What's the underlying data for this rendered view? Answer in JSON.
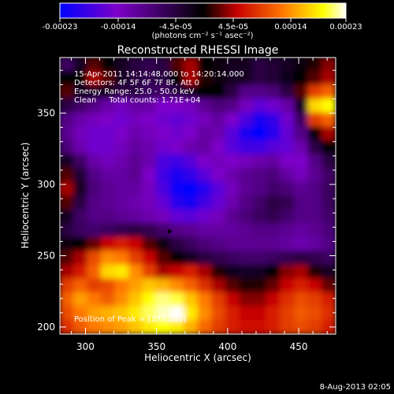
{
  "colorbar": {
    "ticks": [
      "-0.00023",
      "-0.00014",
      "-4.5e-05",
      "4.5e-05",
      "0.00014",
      "0.00023"
    ],
    "unit_line": "(photons cm⁻² s⁻¹ asec⁻²)"
  },
  "chart_data": {
    "type": "heatmap",
    "title": "Reconstructed RHESSI Image",
    "xlabel": "Heliocentric X (arcsec)",
    "ylabel": "Heliocentric Y (arcsec)",
    "xlim": [
      282,
      476
    ],
    "ylim": [
      195,
      389
    ],
    "x_ticks": [
      "300",
      "350",
      "400",
      "450"
    ],
    "y_ticks": [
      "200",
      "250",
      "300",
      "350"
    ],
    "annotations": [
      "15-Apr-2011 14:14:48.000 to 14:20:14.000",
      "Detectors: 4F 5F 6F 7F 8F, Att 0",
      "Energy Range: 25.0 - 50.0 keV",
      "Clean     Total counts: 1.71E+04"
    ],
    "peak_label": "Position of Peak = [377,210]",
    "marker": [
      359,
      267
    ],
    "colorscale": [
      "#0000ff",
      "#7d00c9",
      "#000000",
      "#c80000",
      "#ff7800",
      "#ffff00",
      "#ffffff"
    ],
    "grid": false,
    "levels": [
      [
        0.35,
        0.45,
        0.55,
        0.5,
        0.45,
        0.4,
        0.38,
        0.4,
        0.55,
        0.6,
        0.5,
        0.48,
        0.45,
        0.45,
        0.4,
        0.42,
        0.44,
        0.48,
        0.52,
        0.58
      ],
      [
        0.5,
        0.5,
        0.6,
        0.55,
        0.45,
        0.4,
        0.38,
        0.4,
        0.5,
        0.6,
        0.52,
        0.48,
        0.45,
        0.45,
        0.4,
        0.42,
        0.46,
        0.5,
        0.55,
        0.6
      ],
      [
        0.55,
        0.45,
        0.45,
        0.45,
        0.4,
        0.4,
        0.36,
        0.35,
        0.4,
        0.45,
        0.5,
        0.5,
        0.4,
        0.3,
        0.3,
        0.32,
        0.4,
        0.55,
        0.7,
        0.75
      ],
      [
        0.4,
        0.35,
        0.3,
        0.25,
        0.22,
        0.26,
        0.25,
        0.2,
        0.2,
        0.22,
        0.28,
        0.32,
        0.3,
        0.22,
        0.15,
        0.18,
        0.25,
        0.45,
        0.88,
        0.92
      ],
      [
        0.3,
        0.25,
        0.22,
        0.2,
        0.18,
        0.22,
        0.2,
        0.18,
        0.16,
        0.18,
        0.22,
        0.26,
        0.2,
        0.12,
        0.05,
        0.08,
        0.18,
        0.35,
        0.7,
        0.75
      ],
      [
        0.28,
        0.22,
        0.18,
        0.18,
        0.2,
        0.24,
        0.22,
        0.2,
        0.18,
        0.2,
        0.26,
        0.24,
        0.14,
        0.05,
        0.0,
        0.06,
        0.16,
        0.3,
        0.5,
        0.6
      ],
      [
        0.32,
        0.24,
        0.18,
        0.18,
        0.22,
        0.26,
        0.24,
        0.18,
        0.2,
        0.24,
        0.26,
        0.2,
        0.14,
        0.1,
        0.1,
        0.14,
        0.16,
        0.24,
        0.4,
        0.5
      ],
      [
        0.45,
        0.35,
        0.25,
        0.22,
        0.24,
        0.28,
        0.24,
        0.12,
        0.1,
        0.14,
        0.2,
        0.22,
        0.2,
        0.22,
        0.24,
        0.26,
        0.2,
        0.2,
        0.3,
        0.4
      ],
      [
        0.55,
        0.42,
        0.3,
        0.26,
        0.26,
        0.28,
        0.2,
        0.1,
        0.05,
        0.08,
        0.14,
        0.2,
        0.24,
        0.28,
        0.3,
        0.32,
        0.26,
        0.22,
        0.28,
        0.35
      ],
      [
        0.6,
        0.45,
        0.32,
        0.28,
        0.26,
        0.26,
        0.22,
        0.12,
        0.02,
        0.0,
        0.06,
        0.14,
        0.22,
        0.28,
        0.3,
        0.34,
        0.32,
        0.28,
        0.3,
        0.36
      ],
      [
        0.55,
        0.4,
        0.3,
        0.28,
        0.26,
        0.24,
        0.22,
        0.16,
        0.06,
        0.04,
        0.1,
        0.16,
        0.24,
        0.3,
        0.34,
        0.4,
        0.38,
        0.3,
        0.3,
        0.36
      ],
      [
        0.45,
        0.35,
        0.3,
        0.3,
        0.28,
        0.26,
        0.24,
        0.22,
        0.16,
        0.14,
        0.18,
        0.22,
        0.28,
        0.32,
        0.36,
        0.38,
        0.34,
        0.3,
        0.3,
        0.34
      ],
      [
        0.4,
        0.36,
        0.34,
        0.36,
        0.38,
        0.4,
        0.38,
        0.34,
        0.3,
        0.28,
        0.26,
        0.26,
        0.26,
        0.28,
        0.3,
        0.3,
        0.28,
        0.26,
        0.28,
        0.32
      ],
      [
        0.48,
        0.5,
        0.56,
        0.62,
        0.66,
        0.62,
        0.55,
        0.48,
        0.4,
        0.36,
        0.32,
        0.3,
        0.28,
        0.28,
        0.28,
        0.28,
        0.26,
        0.24,
        0.26,
        0.3
      ],
      [
        0.55,
        0.6,
        0.72,
        0.8,
        0.78,
        0.7,
        0.62,
        0.55,
        0.5,
        0.45,
        0.4,
        0.38,
        0.36,
        0.34,
        0.34,
        0.36,
        0.38,
        0.4,
        0.38,
        0.36
      ],
      [
        0.6,
        0.65,
        0.75,
        0.88,
        0.9,
        0.8,
        0.7,
        0.6,
        0.62,
        0.66,
        0.6,
        0.52,
        0.46,
        0.44,
        0.45,
        0.5,
        0.58,
        0.6,
        0.52,
        0.45
      ],
      [
        0.7,
        0.75,
        0.7,
        0.72,
        0.78,
        0.82,
        0.86,
        0.84,
        0.8,
        0.75,
        0.68,
        0.6,
        0.55,
        0.52,
        0.52,
        0.56,
        0.62,
        0.66,
        0.62,
        0.56
      ],
      [
        0.75,
        0.82,
        0.78,
        0.74,
        0.8,
        0.86,
        0.92,
        0.96,
        0.94,
        0.86,
        0.78,
        0.7,
        0.62,
        0.58,
        0.58,
        0.62,
        0.68,
        0.72,
        0.7,
        0.66
      ],
      [
        0.72,
        0.78,
        0.82,
        0.84,
        0.86,
        0.9,
        0.95,
        0.98,
        1.0,
        0.9,
        0.8,
        0.72,
        0.66,
        0.62,
        0.62,
        0.66,
        0.7,
        0.74,
        0.72,
        0.68
      ],
      [
        0.68,
        0.74,
        0.78,
        0.8,
        0.82,
        0.86,
        0.9,
        0.92,
        0.9,
        0.84,
        0.76,
        0.7,
        0.66,
        0.64,
        0.64,
        0.66,
        0.7,
        0.72,
        0.7,
        0.66
      ]
    ]
  },
  "footer": {
    "date": "8-Aug-2013 02:05"
  }
}
